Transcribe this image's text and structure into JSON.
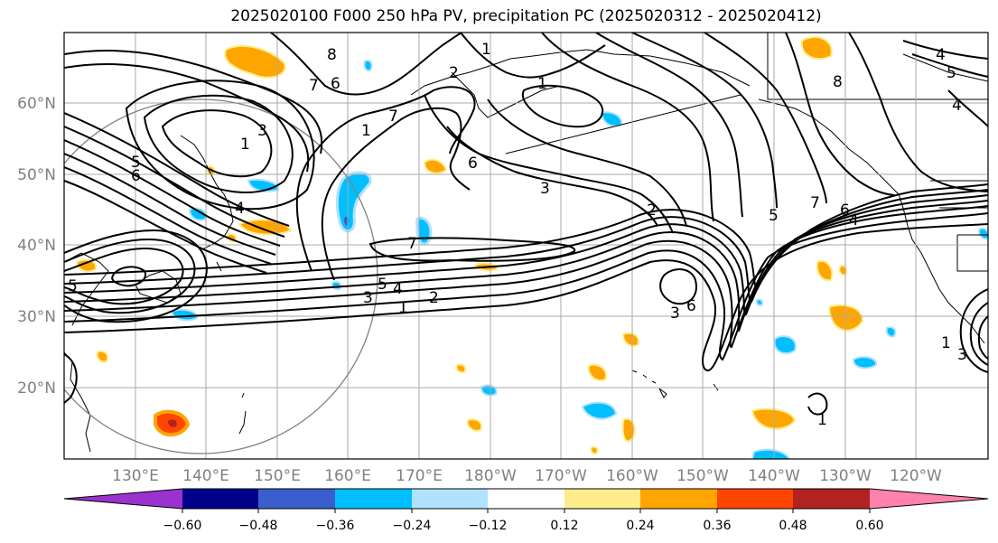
{
  "title": "2025020100 F000 250 hPa PV, precipitation PC (2025020312 - 2025020412)",
  "lat_labels": [
    "60°N",
    "50°N",
    "40°N",
    "30°N",
    "20°N"
  ],
  "lon_labels": [
    "130°E",
    "140°E",
    "150°E",
    "160°E",
    "170°E",
    "180°W",
    "170°W",
    "160°W",
    "150°W",
    "140°W",
    "130°W",
    "120°W"
  ],
  "colorbar": {
    "tick_labels": [
      "−0.60",
      "−0.48",
      "−0.36",
      "−0.24",
      "−0.12",
      "0.12",
      "0.24",
      "0.36",
      "0.48",
      "0.60"
    ],
    "colors": [
      "#9a32cd",
      "#00008b",
      "#3a5fcd",
      "#00bfff",
      "#b0e2ff",
      "#ffffff",
      "#ffec8b",
      "#ffa500",
      "#ff4500",
      "#b22222",
      "#ff82ab"
    ]
  },
  "contour_labels": [
    "8",
    "7",
    "6",
    "3",
    "1",
    "5",
    "6",
    "1",
    "2",
    "4",
    "7",
    "1",
    "1",
    "6",
    "3",
    "2",
    "5",
    "7",
    "6",
    "4",
    "7",
    "5",
    "4",
    "3",
    "2",
    "1",
    "3",
    "6",
    "5",
    "8",
    "4",
    "5",
    "4",
    "1",
    "1",
    "3"
  ]
}
